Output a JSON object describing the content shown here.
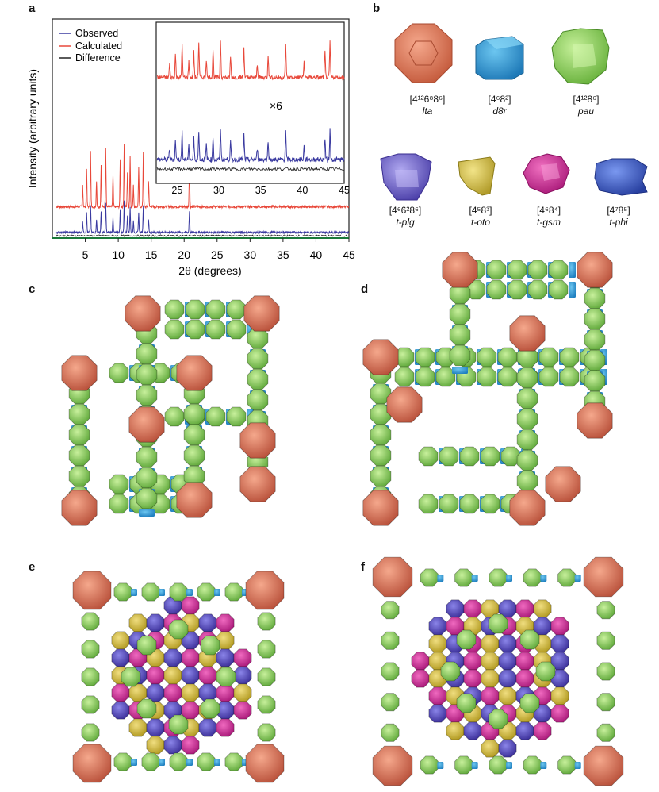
{
  "panel_labels": [
    "a",
    "b",
    "c",
    "d",
    "e",
    "f"
  ],
  "chart_data": {
    "type": "line",
    "ylabel": "Intensity (arbitrary units)",
    "xlabel": "2θ (degrees)",
    "xlim": [
      0,
      45
    ],
    "xticks": [
      "5",
      "10",
      "15",
      "20",
      "25",
      "30",
      "35",
      "40",
      "45"
    ],
    "legend": {
      "placement": "top-left",
      "entries": [
        {
          "name": "Observed",
          "color": "#3a3aa0"
        },
        {
          "name": "Calculated",
          "color": "#e8483a"
        },
        {
          "name": "Difference",
          "color": "#222222"
        }
      ]
    },
    "main_peaks_deg": [
      4.6,
      5.2,
      5.8,
      6.7,
      7.4,
      8.1,
      9.2,
      10.3,
      10.9,
      11.4,
      11.8,
      12.3,
      13.1,
      13.8,
      14.6,
      20.8
    ],
    "inset": {
      "xlim": [
        22.5,
        45
      ],
      "xticks": [
        "25",
        "30",
        "35",
        "40",
        "45"
      ],
      "scale_label": "×6",
      "peaks_deg": [
        24.1,
        24.8,
        25.6,
        26.4,
        27.0,
        27.6,
        28.5,
        29.3,
        30.2,
        31.4,
        33.0,
        34.6,
        35.9,
        38.0,
        40.2,
        42.7,
        43.3
      ]
    }
  },
  "cages": [
    {
      "face": "[4¹²6⁸8⁶]",
      "name": "lta",
      "color": "#e0785a"
    },
    {
      "face": "[4⁶8²]",
      "name": "d8r",
      "color": "#2f9fd8"
    },
    {
      "face": "[4¹²8⁶]",
      "name": "pau",
      "color": "#8fd05a"
    },
    {
      "face": "[4⁶6²8⁶]",
      "name": "t-plg",
      "color": "#6f5fc8"
    },
    {
      "face": "[4⁵8³]",
      "name": "t-oto",
      "color": "#d9c445"
    },
    {
      "face": "[4⁶8⁴]",
      "name": "t-gsm",
      "color": "#d8309a"
    },
    {
      "face": "[4⁷8⁵]",
      "name": "t-phi",
      "color": "#3f62c8"
    }
  ]
}
